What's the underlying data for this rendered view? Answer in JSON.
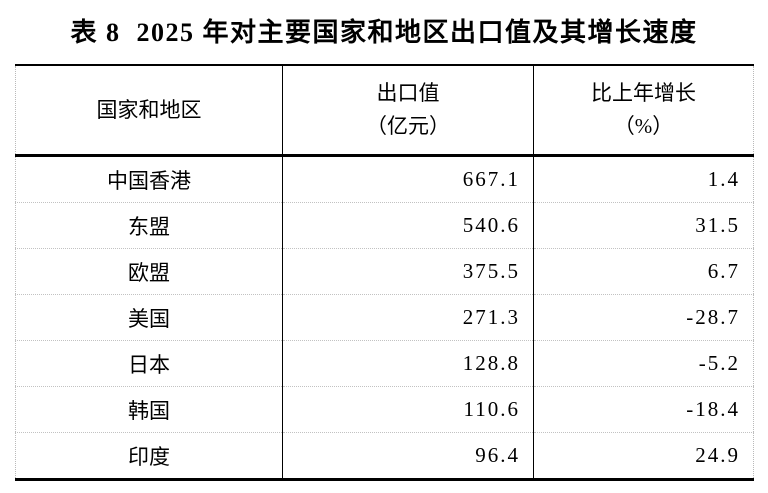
{
  "title": "表 8  2025 年对主要国家和地区出口值及其增长速度",
  "table": {
    "columns": [
      {
        "label": "国家和地区",
        "sublabel": ""
      },
      {
        "label": "出口值",
        "sublabel": "（亿元）"
      },
      {
        "label": "比上年增长",
        "sublabel": "（%）"
      }
    ],
    "rows": [
      {
        "region": "中国香港",
        "export_value": "667.1",
        "growth": "1.4"
      },
      {
        "region": "东盟",
        "export_value": "540.6",
        "growth": "31.5"
      },
      {
        "region": "欧盟",
        "export_value": "375.5",
        "growth": "6.7"
      },
      {
        "region": "美国",
        "export_value": "271.3",
        "growth": "-28.7"
      },
      {
        "region": "日本",
        "export_value": "128.8",
        "growth": "-5.2"
      },
      {
        "region": "韩国",
        "export_value": "110.6",
        "growth": "-18.4"
      },
      {
        "region": "印度",
        "export_value": "96.4",
        "growth": "24.9"
      }
    ]
  },
  "colors": {
    "text": "#000000",
    "strong_rule": "#000000",
    "row_separator": "#c2c2c2",
    "outer_dotted_edge": "#b9b9b9",
    "background": "#ffffff"
  }
}
